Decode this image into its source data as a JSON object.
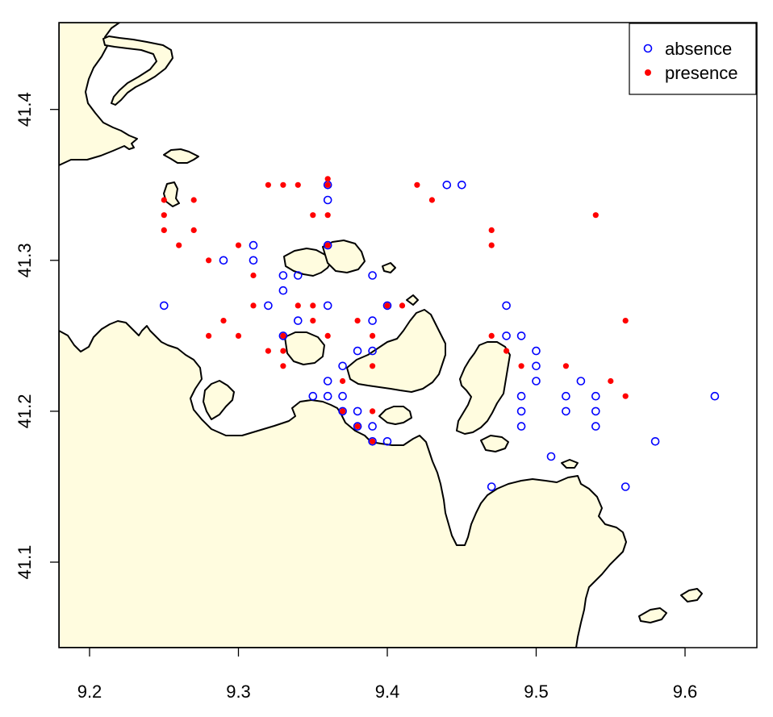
{
  "chart_data": {
    "type": "scatter",
    "title": "",
    "xlabel": "",
    "ylabel": "",
    "xlim": [
      9.18,
      9.65
    ],
    "ylim": [
      41.04,
      41.46
    ],
    "x_ticks": [
      "9.2",
      "9.3",
      "9.4",
      "9.5",
      "9.6"
    ],
    "y_ticks": [
      "41.1",
      "41.2",
      "41.3",
      "41.4"
    ],
    "grid": false,
    "legend_position": "top-right",
    "colors": {
      "absence": "#0000FF",
      "presence": "#FF0000",
      "land": "#FFFCDF",
      "coast": "#000000"
    },
    "series": [
      {
        "name": "absence",
        "marker": "open-circle",
        "points": [
          [
            9.25,
            41.27
          ],
          [
            9.29,
            41.3
          ],
          [
            9.31,
            41.31
          ],
          [
            9.31,
            41.3
          ],
          [
            9.32,
            41.27
          ],
          [
            9.33,
            41.29
          ],
          [
            9.33,
            41.28
          ],
          [
            9.33,
            41.25
          ],
          [
            9.34,
            41.29
          ],
          [
            9.34,
            41.26
          ],
          [
            9.35,
            41.21
          ],
          [
            9.36,
            41.35
          ],
          [
            9.36,
            41.34
          ],
          [
            9.36,
            41.31
          ],
          [
            9.36,
            41.27
          ],
          [
            9.36,
            41.22
          ],
          [
            9.36,
            41.21
          ],
          [
            9.37,
            41.23
          ],
          [
            9.37,
            41.21
          ],
          [
            9.37,
            41.2
          ],
          [
            9.38,
            41.24
          ],
          [
            9.38,
            41.2
          ],
          [
            9.38,
            41.19
          ],
          [
            9.39,
            41.29
          ],
          [
            9.39,
            41.26
          ],
          [
            9.39,
            41.24
          ],
          [
            9.39,
            41.19
          ],
          [
            9.39,
            41.18
          ],
          [
            9.4,
            41.27
          ],
          [
            9.4,
            41.18
          ],
          [
            9.44,
            41.35
          ],
          [
            9.45,
            41.35
          ],
          [
            9.47,
            41.15
          ],
          [
            9.48,
            41.27
          ],
          [
            9.48,
            41.25
          ],
          [
            9.49,
            41.25
          ],
          [
            9.49,
            41.21
          ],
          [
            9.49,
            41.2
          ],
          [
            9.49,
            41.19
          ],
          [
            9.5,
            41.24
          ],
          [
            9.5,
            41.23
          ],
          [
            9.5,
            41.22
          ],
          [
            9.51,
            41.17
          ],
          [
            9.52,
            41.21
          ],
          [
            9.52,
            41.2
          ],
          [
            9.53,
            41.22
          ],
          [
            9.54,
            41.21
          ],
          [
            9.54,
            41.2
          ],
          [
            9.54,
            41.19
          ],
          [
            9.56,
            41.15
          ],
          [
            9.58,
            41.18
          ],
          [
            9.62,
            41.21
          ]
        ]
      },
      {
        "name": "presence",
        "marker": "filled-circle",
        "points": [
          [
            9.25,
            41.34
          ],
          [
            9.25,
            41.33
          ],
          [
            9.25,
            41.32
          ],
          [
            9.26,
            41.31
          ],
          [
            9.27,
            41.34
          ],
          [
            9.27,
            41.32
          ],
          [
            9.28,
            41.3
          ],
          [
            9.28,
            41.25
          ],
          [
            9.29,
            41.26
          ],
          [
            9.3,
            41.31
          ],
          [
            9.3,
            41.25
          ],
          [
            9.31,
            41.29
          ],
          [
            9.31,
            41.27
          ],
          [
            9.32,
            41.35
          ],
          [
            9.32,
            41.24
          ],
          [
            9.33,
            41.35
          ],
          [
            9.33,
            41.25
          ],
          [
            9.33,
            41.24
          ],
          [
            9.33,
            41.23
          ],
          [
            9.34,
            41.35
          ],
          [
            9.34,
            41.27
          ],
          [
            9.35,
            41.33
          ],
          [
            9.35,
            41.27
          ],
          [
            9.35,
            41.26
          ],
          [
            9.36,
            41.354
          ],
          [
            9.36,
            41.35
          ],
          [
            9.36,
            41.33
          ],
          [
            9.36,
            41.31
          ],
          [
            9.36,
            41.25
          ],
          [
            9.37,
            41.22
          ],
          [
            9.37,
            41.2
          ],
          [
            9.38,
            41.26
          ],
          [
            9.38,
            41.19
          ],
          [
            9.39,
            41.25
          ],
          [
            9.39,
            41.23
          ],
          [
            9.39,
            41.2
          ],
          [
            9.39,
            41.18
          ],
          [
            9.4,
            41.27
          ],
          [
            9.41,
            41.27
          ],
          [
            9.42,
            41.35
          ],
          [
            9.43,
            41.34
          ],
          [
            9.47,
            41.32
          ],
          [
            9.47,
            41.31
          ],
          [
            9.47,
            41.25
          ],
          [
            9.48,
            41.24
          ],
          [
            9.49,
            41.23
          ],
          [
            9.52,
            41.23
          ],
          [
            9.54,
            41.33
          ],
          [
            9.55,
            41.22
          ],
          [
            9.56,
            41.26
          ],
          [
            9.56,
            41.21
          ]
        ]
      }
    ]
  }
}
